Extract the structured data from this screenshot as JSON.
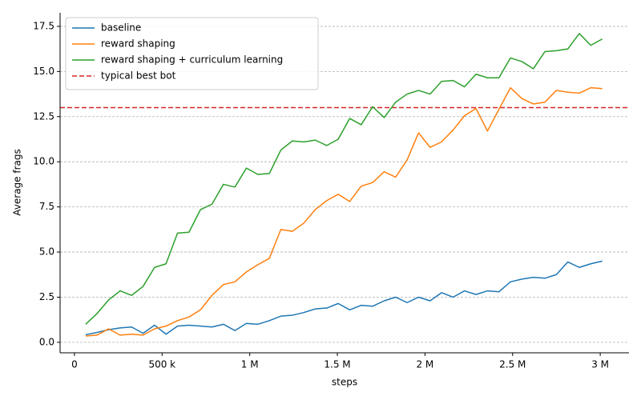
{
  "chart_data": {
    "type": "line",
    "xlabel": "steps",
    "ylabel": "Average frags",
    "x": [
      64000,
      129500,
      195000,
      260500,
      326000,
      391500,
      457000,
      522500,
      588000,
      653500,
      719000,
      784500,
      850000,
      915500,
      981000,
      1046500,
      1112000,
      1177500,
      1243000,
      1308500,
      1374000,
      1439500,
      1505000,
      1570500,
      1636000,
      1701500,
      1767000,
      1832500,
      1898000,
      1963500,
      2029000,
      2094500,
      2160000,
      2225500,
      2291000,
      2356500,
      2422000,
      2487500,
      2553000,
      2618500,
      2684000,
      2749500,
      2815000,
      2880500,
      2946000,
      3011500
    ],
    "series": [
      {
        "name": "baseline",
        "color": "#1f77b4",
        "values": [
          0.42,
          0.55,
          0.7,
          0.8,
          0.85,
          0.5,
          0.95,
          0.45,
          0.9,
          0.95,
          0.9,
          0.85,
          1.0,
          0.65,
          1.05,
          1.0,
          1.2,
          1.45,
          1.5,
          1.65,
          1.85,
          1.9,
          2.15,
          1.8,
          2.05,
          2.0,
          2.3,
          2.5,
          2.2,
          2.5,
          2.3,
          2.75,
          2.5,
          2.85,
          2.65,
          2.85,
          2.8,
          3.35,
          3.5,
          3.6,
          3.55,
          3.75,
          4.45,
          4.15,
          4.35,
          4.5
        ]
      },
      {
        "name": "reward shaping",
        "color": "#ff7f0e",
        "values": [
          0.35,
          0.4,
          0.75,
          0.4,
          0.45,
          0.4,
          0.75,
          0.9,
          1.2,
          1.4,
          1.8,
          2.6,
          3.2,
          3.35,
          3.9,
          4.3,
          4.65,
          6.25,
          6.15,
          6.6,
          7.35,
          7.85,
          8.2,
          7.8,
          8.65,
          8.85,
          9.45,
          9.15,
          10.1,
          11.6,
          10.8,
          11.1,
          11.75,
          12.55,
          12.95,
          11.7,
          12.9,
          14.1,
          13.5,
          13.2,
          13.3,
          13.95,
          13.85,
          13.8,
          14.1,
          14.05
        ]
      },
      {
        "name": "reward shaping + curriculum learning",
        "color": "#2ca02c",
        "values": [
          1.0,
          1.6,
          2.35,
          2.85,
          2.6,
          3.1,
          4.15,
          4.35,
          6.05,
          6.1,
          7.35,
          7.65,
          8.75,
          8.6,
          9.65,
          9.3,
          9.35,
          10.65,
          11.15,
          11.1,
          11.2,
          10.9,
          11.25,
          12.4,
          12.05,
          13.05,
          12.45,
          13.3,
          13.75,
          13.95,
          13.75,
          14.45,
          14.5,
          14.15,
          14.85,
          14.65,
          14.65,
          15.75,
          15.55,
          15.15,
          16.1,
          16.15,
          16.25,
          17.1,
          16.45,
          16.8
        ]
      }
    ],
    "reference_line": {
      "name": "typical best bot",
      "value": 13,
      "color": "#d62728"
    },
    "xlim": [
      -82000,
      3164000
    ],
    "xticks": [
      0,
      {
        "value": 500000,
        "label": "500 k"
      },
      {
        "value": 1000000,
        "label": "1 M"
      },
      {
        "value": 1500000,
        "label": "1.5 M"
      },
      {
        "value": 2000000,
        "label": "2 M"
      },
      {
        "value": 2500000,
        "label": "2.5 M"
      },
      {
        "value": 3000000,
        "label": "3 M"
      }
    ],
    "ylim": [
      -0.58,
      18.25
    ],
    "yticks": [
      {
        "value": 0,
        "label": "0.0"
      },
      2.5,
      {
        "value": 5,
        "label": "5.0"
      },
      7.5,
      {
        "value": 10,
        "label": "10.0"
      },
      12.5,
      {
        "value": 15,
        "label": "15.0"
      },
      17.5
    ],
    "grid": "y",
    "legend": "upper left"
  }
}
